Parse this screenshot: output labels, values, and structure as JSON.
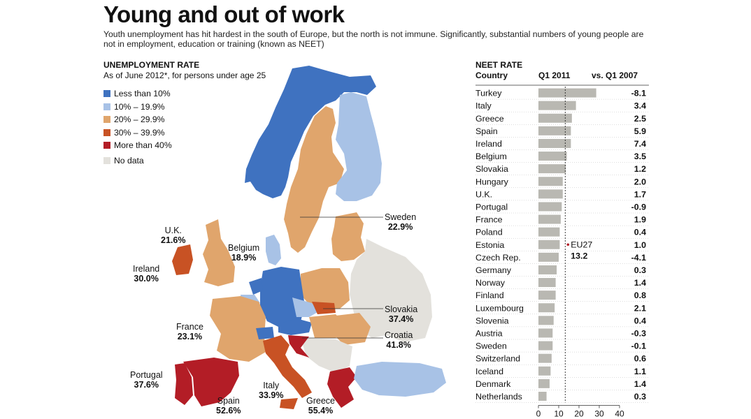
{
  "header": {
    "title": "Young and out of work",
    "subtitle": "Youth unemployment has hit hardest in the south of Europe, but the north is not immune. Significantly, substantial numbers of young people are not in employment, education or training (known as NEET)"
  },
  "map": {
    "heading": "UNEMPLOYMENT RATE",
    "note": "As of June 2012*, for persons under age 25",
    "legend": [
      {
        "label": "Less than 10%",
        "color": "#3f72c0"
      },
      {
        "label": "10% – 19.9%",
        "color": "#a8c2e6"
      },
      {
        "label": "20% – 29.9%",
        "color": "#e0a56c"
      },
      {
        "label": "30% – 39.9%",
        "color": "#c85224"
      },
      {
        "label": "More than 40%",
        "color": "#b31d26"
      }
    ],
    "no_data": {
      "label": "No data",
      "color": "#e3e1dc"
    },
    "labels": [
      {
        "name": "U.K.",
        "value": "21.6%"
      },
      {
        "name": "Ireland",
        "value": "30.0%"
      },
      {
        "name": "Belgium",
        "value": "18.9%"
      },
      {
        "name": "Sweden",
        "value": "22.9%"
      },
      {
        "name": "France",
        "value": "23.1%"
      },
      {
        "name": "Slovakia",
        "value": "37.4%"
      },
      {
        "name": "Croatia",
        "value": "41.8%"
      },
      {
        "name": "Portugal",
        "value": "37.6%"
      },
      {
        "name": "Italy",
        "value": "33.9%"
      },
      {
        "name": "Spain",
        "value": "52.6%"
      },
      {
        "name": "Greece",
        "value": "55.4%"
      }
    ]
  },
  "chart_data": {
    "type": "bar",
    "title": "NEET RATE",
    "column_headers": {
      "country": "Country",
      "rate": "Q1 2011",
      "change": "vs. Q1 2007"
    },
    "categories": [
      "Turkey",
      "Italy",
      "Greece",
      "Spain",
      "Ireland",
      "Belgium",
      "Slovakia",
      "Hungary",
      "U.K.",
      "Portugal",
      "France",
      "Poland",
      "Estonia",
      "Czech Rep.",
      "Germany",
      "Norway",
      "Finland",
      "Luxembourg",
      "Slovenia",
      "Austria",
      "Sweden",
      "Switzerland",
      "Iceland",
      "Denmark",
      "Netherlands"
    ],
    "values": [
      28.5,
      18.5,
      16.5,
      16,
      16,
      14,
      13.5,
      12,
      12,
      11.5,
      11,
      10.5,
      10.5,
      10,
      9,
      8.5,
      8.5,
      8,
      7.5,
      7,
      7,
      6.5,
      6,
      5.5,
      4
    ],
    "changes": [
      "-8.1",
      "3.4",
      "2.5",
      "5.9",
      "7.4",
      "3.5",
      "1.2",
      "2.0",
      "1.7",
      "-0.9",
      "1.9",
      "0.4",
      "1.0",
      "-4.1",
      "0.3",
      "1.4",
      "0.8",
      "2.1",
      "0.4",
      "-0.3",
      "-0.1",
      "0.6",
      "1.1",
      "1.4",
      "0.3"
    ],
    "xlim": [
      0,
      40
    ],
    "xticks": [
      "0",
      "10",
      "20",
      "30",
      "40"
    ],
    "reference": {
      "label": "EU27",
      "value": 13.2,
      "value_label": "13.2"
    },
    "bar_color": "#b9b8b2"
  }
}
